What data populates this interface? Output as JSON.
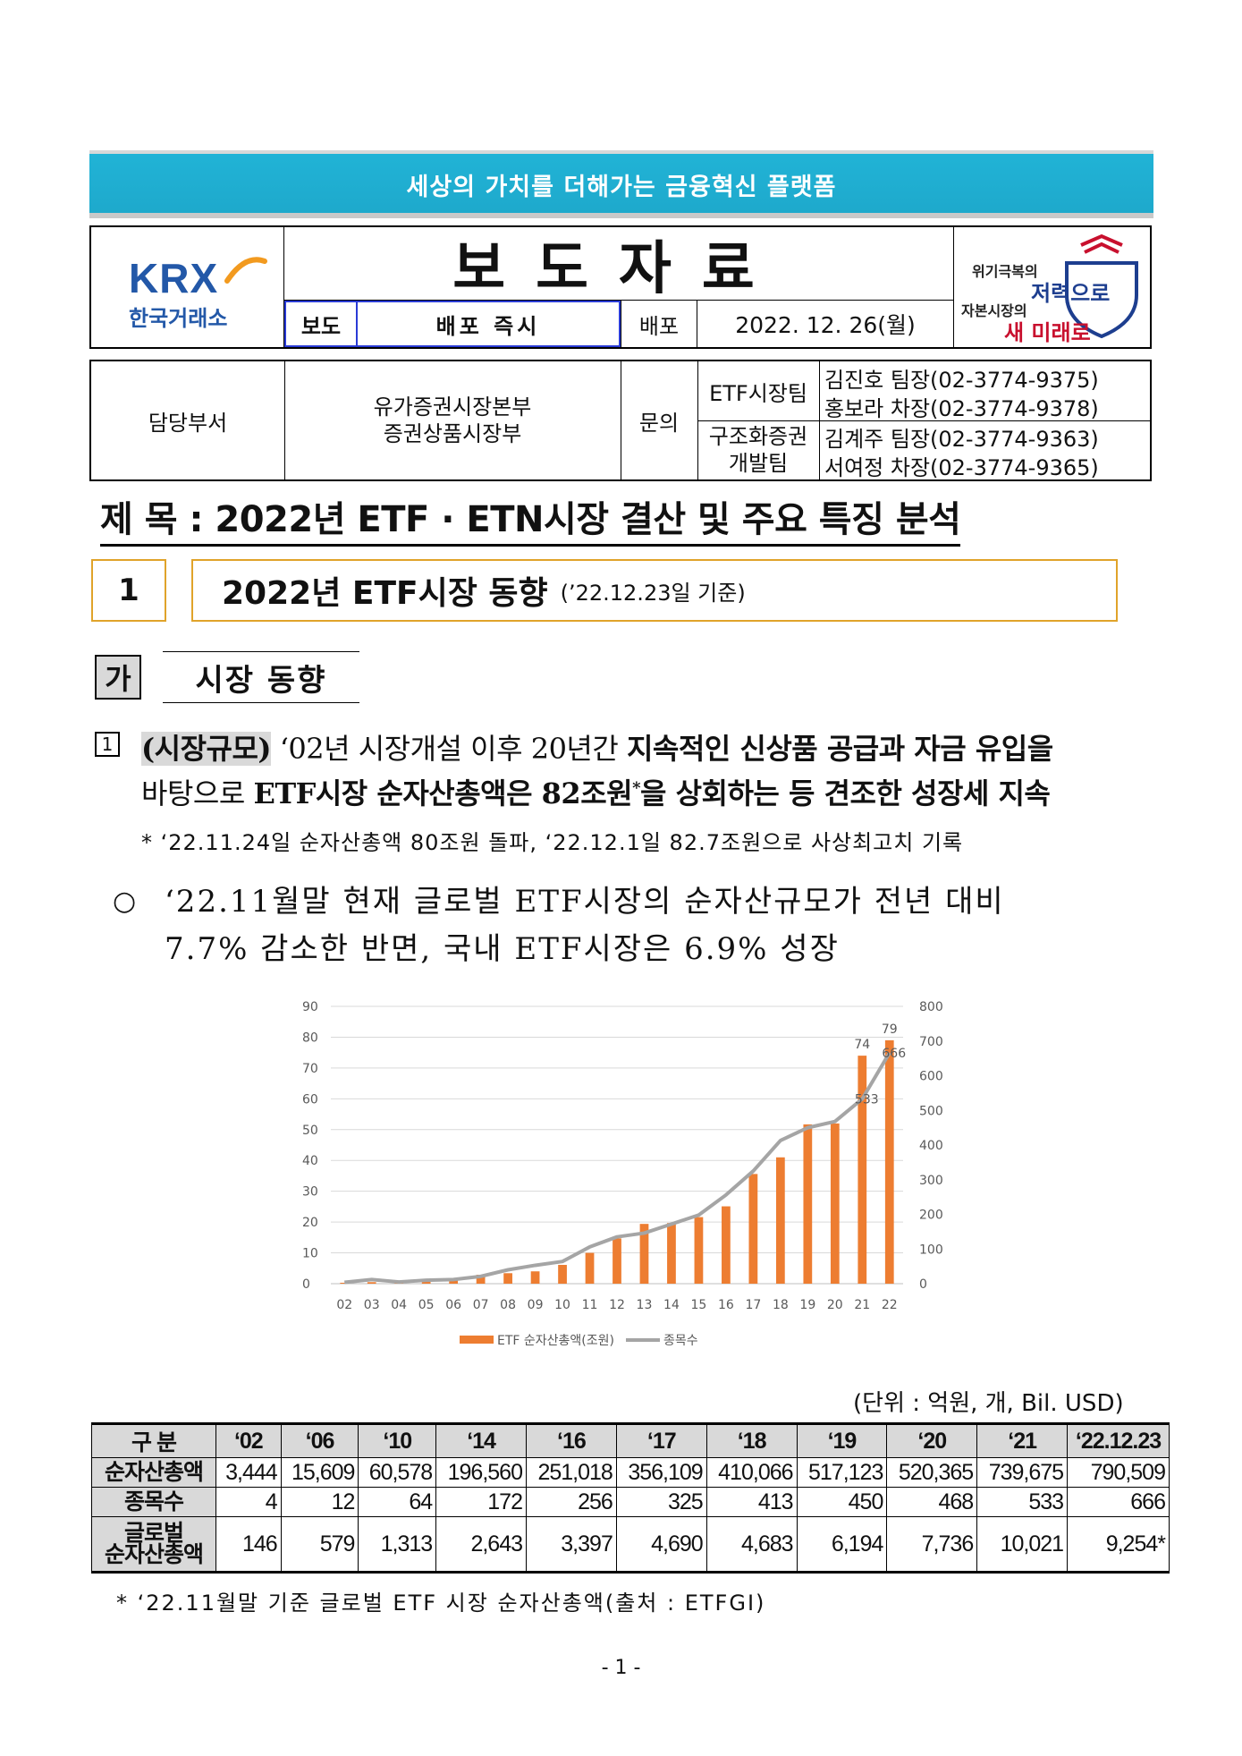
{
  "banner": "세상의 가치를 더해가는 금융혁신 플랫폼",
  "header": {
    "logo_text": "KRX",
    "logo_sub": "한국거래소",
    "title": "보도자료",
    "bodo_label": "보도",
    "bodo_value": "배포 즉시",
    "baepo_label": "배포",
    "baepo_date": "2022. 12. 26(월)",
    "slogan": [
      "위기극복의",
      "저력으로",
      "자본시장의",
      "새 미래로"
    ]
  },
  "contact": {
    "dept_label": "담당부서",
    "dept": [
      "유가증권시장본부",
      "증권상품시장부"
    ],
    "inquiry_label": "문의",
    "teams": [
      {
        "name": "ETF시장팀",
        "members": [
          "김진호  팀장(02-3774-9375)",
          "홍보라  차장(02-3774-9378)"
        ]
      },
      {
        "name": "구조화증권\n개발팀",
        "members": [
          "김계주  팀장(02-3774-9363)",
          "서여정  차장(02-3774-9365)"
        ]
      }
    ]
  },
  "subject": "제 목 : 2022년 ETF · ETN시장 결산 및 주요 특징 분석",
  "section1": {
    "number": "1",
    "title": "2022년 ETF시장 동향",
    "date": "(’22.12.23일 기준)"
  },
  "subsection": {
    "mark": "가",
    "title": "시장 동향"
  },
  "para1": {
    "label": "(시장규모)",
    "line1_a": " ‘02년 시장개설 이후 20년간 ",
    "line1_b": "지속적인 신상품 공급과 자금 유입",
    "line1_c": "을",
    "line2_a": "바탕으로 ",
    "line2_b": "ETF시장 순자산총액은 82조원",
    "line2_star": "*",
    "line2_c": "을 상회하는 등 견조한 성장세 지속"
  },
  "note1": "* ‘22.11.24일 순자산총액 80조원 돌파, ‘22.12.1일 82.7조원으로 사상최고치 기록",
  "para2": {
    "line1": "‘22.11월말 현재 글로벌 ETF시장의 순자산규모가 전년 대비",
    "line2": "7.7% 감소한 반면, 국내 ETF시장은 6.9% 성장"
  },
  "chart_data": {
    "type": "bar",
    "categories": [
      "02",
      "03",
      "04",
      "05",
      "06",
      "07",
      "08",
      "09",
      "10",
      "11",
      "12",
      "13",
      "14",
      "15",
      "16",
      "17",
      "18",
      "19",
      "20",
      "21",
      "22"
    ],
    "series": [
      {
        "name": "ETF 순자산총액(조원)",
        "type": "bar",
        "axis": "left",
        "values": [
          0.3,
          0.5,
          0.6,
          1.0,
          1.6,
          2.9,
          3.4,
          4.0,
          6.1,
          10.0,
          14.7,
          19.4,
          19.7,
          21.6,
          25.1,
          35.6,
          41.0,
          51.7,
          52.0,
          74,
          79
        ]
      },
      {
        "name": "종목수",
        "type": "line",
        "axis": "right",
        "values": [
          4,
          12,
          5,
          10,
          12,
          21,
          40,
          53,
          64,
          106,
          135,
          146,
          172,
          198,
          256,
          325,
          413,
          450,
          468,
          533,
          666
        ]
      }
    ],
    "data_labels": [
      {
        "series": "ETF 순자산총액(조원)",
        "category": "21",
        "text": "74"
      },
      {
        "series": "ETF 순자산총액(조원)",
        "category": "22",
        "text": "79"
      },
      {
        "series": "종목수",
        "category": "21",
        "text": "533"
      },
      {
        "series": "종목수",
        "category": "22",
        "text": "666"
      }
    ],
    "left_axis": {
      "ylim": [
        0,
        90
      ],
      "ticks": [
        0,
        10,
        20,
        30,
        40,
        50,
        60,
        70,
        80,
        90
      ]
    },
    "right_axis": {
      "ylim": [
        0,
        800
      ],
      "ticks": [
        0,
        100,
        200,
        300,
        400,
        500,
        600,
        700,
        800
      ]
    },
    "grid": true,
    "legend": "bottom",
    "colors": {
      "bar": "#ed7d31",
      "line": "#a5a5a5",
      "grid": "#d9d9d9",
      "text": "#595959"
    }
  },
  "unit": "(단위 : 억원, 개, Bil. USD)",
  "table": {
    "headers": [
      "구 분",
      "‘02",
      "‘06",
      "‘10",
      "‘14",
      "‘16",
      "‘17",
      "‘18",
      "‘19",
      "‘20",
      "‘21",
      "‘22.12.23"
    ],
    "rows": [
      {
        "label": "순자산총액",
        "values": [
          "3,444",
          "15,609",
          "60,578",
          "196,560",
          "251,018",
          "356,109",
          "410,066",
          "517,123",
          "520,365",
          "739,675",
          "790,509"
        ]
      },
      {
        "label": "종목수",
        "values": [
          "4",
          "12",
          "64",
          "172",
          "256",
          "325",
          "413",
          "450",
          "468",
          "533",
          "666"
        ]
      },
      {
        "label": "글로벌\n순자산총액",
        "values": [
          "146",
          "579",
          "1,313",
          "2,643",
          "3,397",
          "4,690",
          "4,683",
          "6,194",
          "7,736",
          "10,021",
          "9,254*"
        ]
      }
    ]
  },
  "note2": "* ‘22.11월말 기준 글로벌 ETF 시장 순자산총액(출처 : ETFGI)",
  "page_number": "- 1 -"
}
